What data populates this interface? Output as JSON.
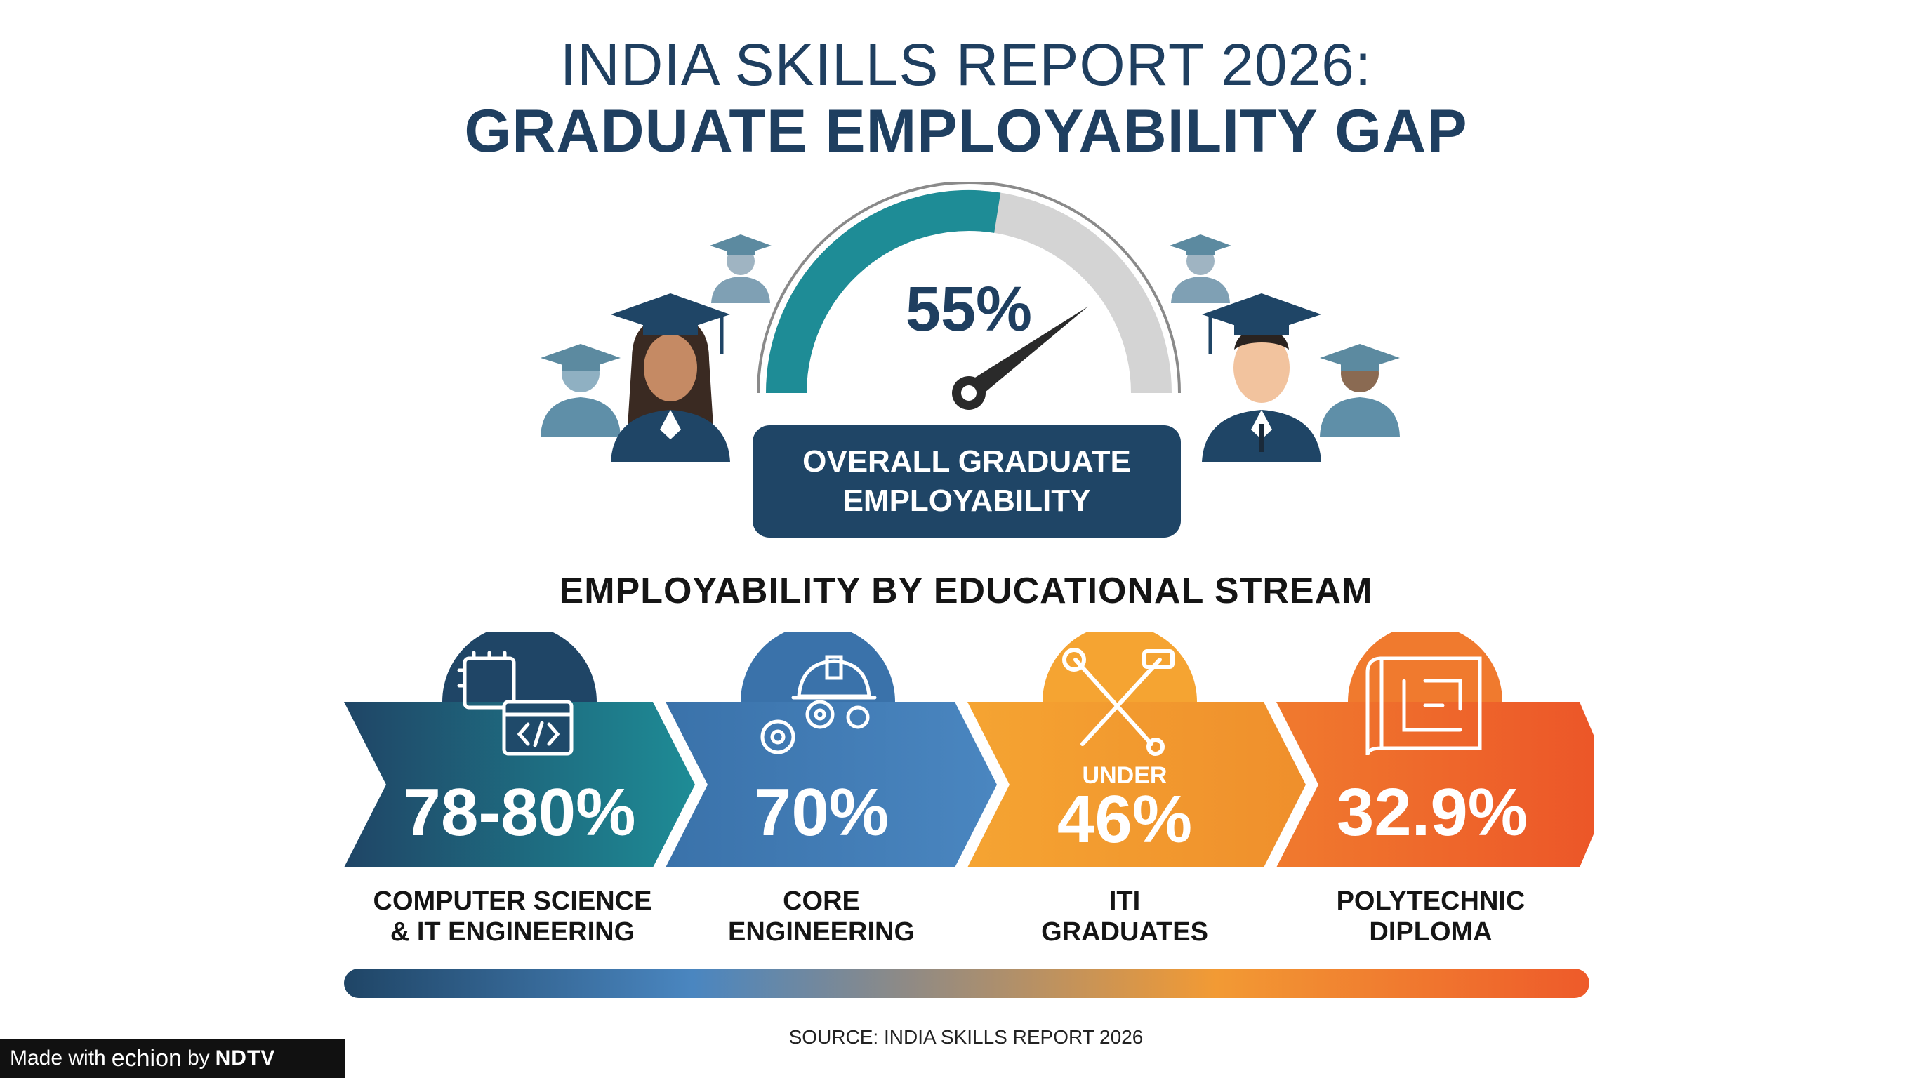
{
  "title": {
    "line1": "INDIA SKILLS REPORT 2026:",
    "line2": "GRADUATE EMPLOYABILITY GAP"
  },
  "gauge": {
    "value_label": "55%",
    "value": 55,
    "caption_line1": "OVERALL GRADUATE",
    "caption_line2": "EMPLOYABILITY",
    "fill_color": "#1e8c96",
    "track_color": "#d4d4d4"
  },
  "icons": {
    "graduates_left": "graduate-icon",
    "graduates_right": "graduate-icon",
    "stream_1": "chip-code-window-icon",
    "stream_2": "hardhat-gears-icon",
    "stream_3": "wrench-hammer-icon",
    "stream_4": "blueprint-icon"
  },
  "section_title": "EMPLOYABILITY BY EDUCATIONAL STREAM",
  "streams": [
    {
      "qualifier": "",
      "value": "78-80%",
      "label_line1": "COMPUTER SCIENCE",
      "label_line2": "& IT ENGINEERING",
      "color": "#1f4566"
    },
    {
      "qualifier": "",
      "value": "70%",
      "label_line1": "CORE",
      "label_line2": "ENGINEERING",
      "color": "#4a86c0"
    },
    {
      "qualifier": "UNDER",
      "value": "46%",
      "label_line1": "ITI",
      "label_line2": "GRADUATES",
      "color": "#f29a34"
    },
    {
      "qualifier": "",
      "value": "32.9%",
      "label_line1": "POLYTECHNIC",
      "label_line2": "DIPLOMA",
      "color": "#ee5a2a"
    }
  ],
  "source": "SOURCE: INDIA SKILLS REPORT 2026",
  "watermark": {
    "prefix": "Made with",
    "brand": "echion",
    "by": "by",
    "owner": "NDTV"
  }
}
